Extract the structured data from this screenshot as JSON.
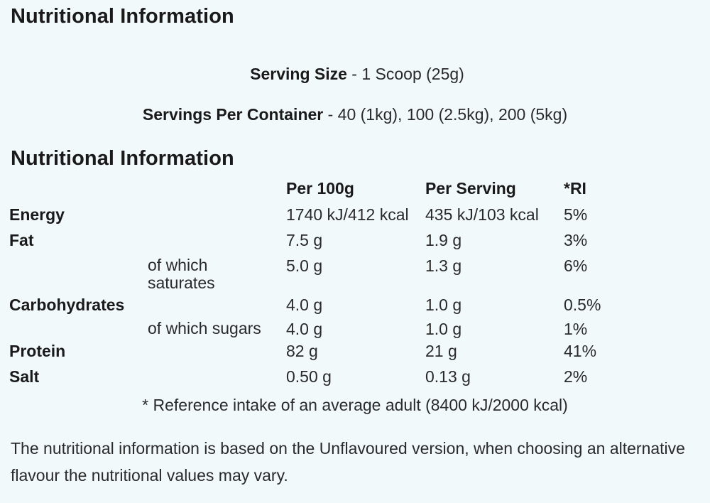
{
  "heading_top": "Nutritional Information",
  "serving_size": {
    "label": "Serving Size",
    "value": " - 1 Scoop (25g)"
  },
  "servings_per_container": {
    "label": "Servings Per Container",
    "value": " - 40 (1kg), 100 (2.5kg), 200 (5kg)"
  },
  "heading_table": "Nutritional Information",
  "table": {
    "columns": [
      "",
      "",
      "Per 100g",
      "Per Serving",
      "*RI"
    ],
    "rows": [
      {
        "name": "Energy",
        "sub": "",
        "per100": "1740 kJ/412 kcal",
        "serving": "435 kJ/103 kcal",
        "ri": "5%"
      },
      {
        "name": "Fat",
        "sub": "",
        "per100": "7.5 g",
        "serving": "1.9 g",
        "ri": "3%"
      },
      {
        "name": "",
        "sub": "of which saturates",
        "per100": "5.0 g",
        "serving": "1.3 g",
        "ri": "6%"
      },
      {
        "name": "Carbohydrates",
        "sub": "",
        "per100": "4.0 g",
        "serving": "1.0 g",
        "ri": "0.5%"
      },
      {
        "name": "",
        "sub": "of which sugars",
        "per100": "4.0 g",
        "serving": "1.0 g",
        "ri": "1%"
      },
      {
        "name": "Protein",
        "sub": "",
        "per100": "82 g",
        "serving": "21 g",
        "ri": "41%"
      },
      {
        "name": "Salt",
        "sub": "",
        "per100": "0.50 g",
        "serving": "0.13 g",
        "ri": "2%"
      }
    ]
  },
  "ri_footnote": "* Reference intake of an average adult (8400 kJ/2000 kcal)",
  "note": "The nutritional information is based on the Unflavoured version, when choosing an alternative flavour the nutritional values may vary."
}
